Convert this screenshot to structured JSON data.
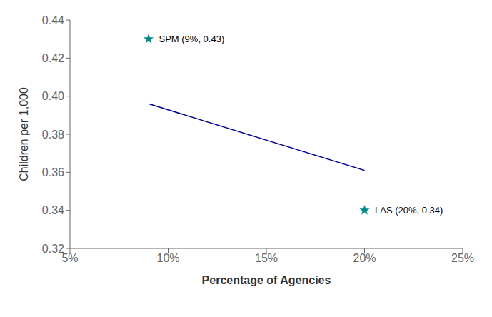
{
  "chart_data": {
    "type": "scatter",
    "xlabel": "Percentage of Agencies",
    "ylabel": "Children per 1,000",
    "xlim": [
      0.05,
      0.25
    ],
    "ylim": [
      0.32,
      0.44
    ],
    "xticks": [
      {
        "value": 0.05,
        "label": "5%"
      },
      {
        "value": 0.1,
        "label": "10%"
      },
      {
        "value": 0.15,
        "label": "15%"
      },
      {
        "value": 0.2,
        "label": "20%"
      },
      {
        "value": 0.25,
        "label": "25%"
      }
    ],
    "yticks": [
      0.32,
      0.34,
      0.36,
      0.38,
      {
        "value": 0.4,
        "label": "0.40"
      },
      0.42,
      0.44
    ],
    "grid": false,
    "series": [
      {
        "type": "line",
        "color": "#00008B",
        "x": [
          0.09,
          0.2
        ],
        "values": [
          0.396,
          0.361
        ]
      },
      {
        "type": "scatter",
        "color": "#008B8B",
        "marker": "star",
        "x": [
          0.09,
          0.2
        ],
        "values": [
          0.43,
          0.34
        ],
        "value_labels": [
          "SPM (9%, 0.43)",
          "LAS (20%, 0.34)"
        ]
      }
    ]
  }
}
